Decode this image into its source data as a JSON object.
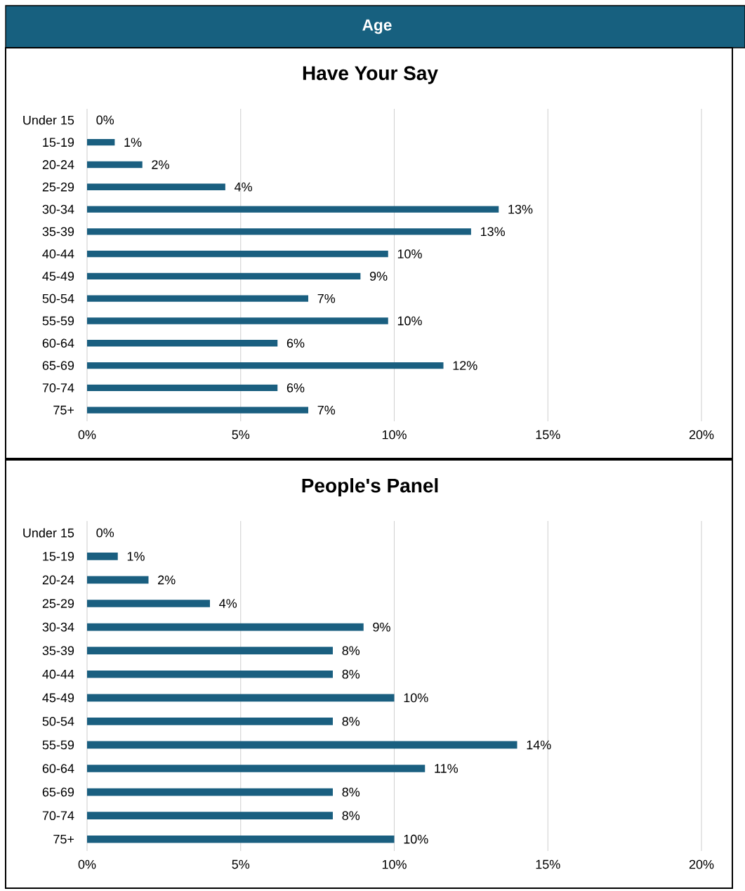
{
  "chart_data": [
    {
      "type": "other",
      "title": "Age"
    },
    {
      "type": "bar",
      "orientation": "horizontal",
      "title": "Have Your Say",
      "color": "#1a5f80",
      "grid": "x",
      "categories": [
        "Under 15",
        "15-19",
        "20-24",
        "25-29",
        "30-34",
        "35-39",
        "40-44",
        "45-49",
        "50-54",
        "55-59",
        "60-64",
        "65-69",
        "70-74",
        "75+"
      ],
      "values": [
        0,
        0.9,
        1.8,
        4.5,
        13.4,
        12.5,
        9.8,
        8.9,
        7.2,
        9.8,
        6.2,
        11.6,
        6.2,
        7.2
      ],
      "value_labels": [
        "0%",
        "1%",
        "2%",
        "4%",
        "13%",
        "13%",
        "10%",
        "9%",
        "7%",
        "10%",
        "6%",
        "12%",
        "6%",
        "7%"
      ],
      "xlim": [
        0,
        20
      ],
      "xticks": [
        {
          "value": 0,
          "label": "0%"
        },
        {
          "value": 5,
          "label": "5%"
        },
        {
          "value": 10,
          "label": "10%"
        },
        {
          "value": 15,
          "label": "15%"
        },
        {
          "value": 20,
          "label": "20%"
        }
      ]
    },
    {
      "type": "bar",
      "orientation": "horizontal",
      "title": "People's Panel",
      "color": "#1a5f80",
      "grid": "x",
      "categories": [
        "Under 15",
        "15-19",
        "20-24",
        "25-29",
        "30-34",
        "35-39",
        "40-44",
        "45-49",
        "50-54",
        "55-59",
        "60-64",
        "65-69",
        "70-74",
        "75+"
      ],
      "values": [
        0,
        1,
        2,
        4,
        9,
        8,
        8,
        10,
        8,
        14,
        11,
        8,
        8,
        10
      ],
      "value_labels": [
        "0%",
        "1%",
        "2%",
        "4%",
        "9%",
        "8%",
        "8%",
        "10%",
        "8%",
        "14%",
        "11%",
        "8%",
        "8%",
        "10%"
      ],
      "xlim": [
        0,
        20
      ],
      "xticks": [
        {
          "value": 0,
          "label": "0%"
        },
        {
          "value": 5,
          "label": "5%"
        },
        {
          "value": 10,
          "label": "10%"
        },
        {
          "value": 15,
          "label": "15%"
        },
        {
          "value": 20,
          "label": "20%"
        }
      ]
    }
  ]
}
